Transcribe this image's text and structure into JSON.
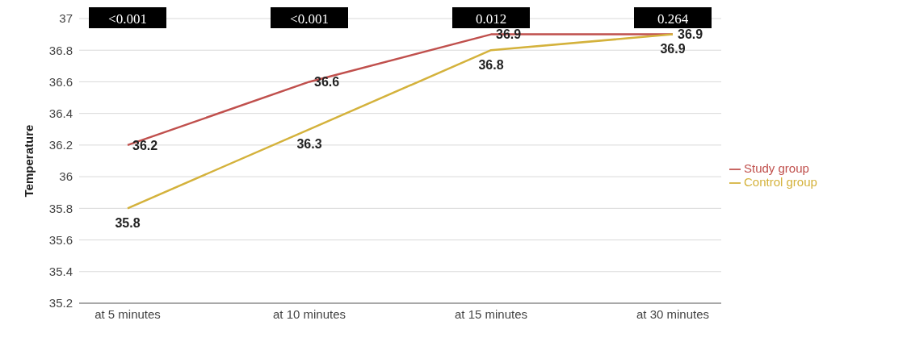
{
  "chart_data": {
    "type": "line",
    "ylabel": "Temperature",
    "categories": [
      "at 5 minutes",
      "at 10 minutes",
      "at 15 minutes",
      "at 30 minutes"
    ],
    "series": [
      {
        "name": "Study group",
        "color": "#c0504d",
        "values": [
          36.2,
          36.6,
          36.9,
          36.9
        ]
      },
      {
        "name": "Control group",
        "color": "#d4b23c",
        "values": [
          35.8,
          36.3,
          36.8,
          36.9
        ]
      }
    ],
    "ylim": [
      35.2,
      37
    ],
    "yticks": [
      35.2,
      35.4,
      35.6,
      35.8,
      36,
      36.2,
      36.4,
      36.6,
      36.8,
      37
    ],
    "grid": "y",
    "legend": "right",
    "marker": "none",
    "line_style": "solid",
    "data_labels": true,
    "annotations": [
      "<0.001",
      "<0.001",
      "0.012",
      "0.264"
    ]
  }
}
